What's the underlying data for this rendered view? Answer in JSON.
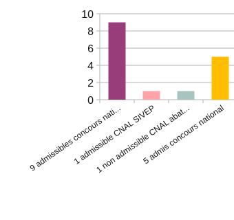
{
  "chart_data": {
    "type": "bar",
    "categories": [
      "9 admissibles concours nati...",
      "1 admissible CNAL SIVEP",
      "1 non admissible CNAL abat...",
      "5 admis concours national"
    ],
    "values": [
      9,
      1,
      1,
      5
    ],
    "colors": [
      "#993d7a",
      "#ffa3a8",
      "#a9c4c0",
      "#ffbf00"
    ],
    "ylim": [
      0,
      10
    ],
    "yticks": [
      0,
      2,
      4,
      6,
      8,
      10
    ],
    "grid": true,
    "legend": "none",
    "title": "",
    "xlabel": "",
    "ylabel": ""
  }
}
